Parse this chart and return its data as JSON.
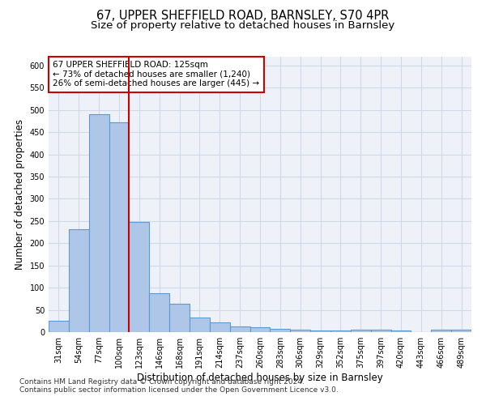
{
  "title1": "67, UPPER SHEFFIELD ROAD, BARNSLEY, S70 4PR",
  "title2": "Size of property relative to detached houses in Barnsley",
  "xlabel": "Distribution of detached houses by size in Barnsley",
  "ylabel": "Number of detached properties",
  "footer1": "Contains HM Land Registry data © Crown copyright and database right 2024.",
  "footer2": "Contains public sector information licensed under the Open Government Licence v3.0.",
  "categories": [
    "31sqm",
    "54sqm",
    "77sqm",
    "100sqm",
    "123sqm",
    "146sqm",
    "168sqm",
    "191sqm",
    "214sqm",
    "237sqm",
    "260sqm",
    "283sqm",
    "306sqm",
    "329sqm",
    "352sqm",
    "375sqm",
    "397sqm",
    "420sqm",
    "443sqm",
    "466sqm",
    "489sqm"
  ],
  "values": [
    25,
    232,
    490,
    472,
    248,
    88,
    63,
    32,
    22,
    13,
    11,
    8,
    5,
    3,
    3,
    5,
    5,
    3,
    0,
    5,
    5
  ],
  "bar_color": "#aec6e8",
  "bar_edge_color": "#5b9bd5",
  "bar_edge_width": 0.8,
  "red_line_index": 4,
  "red_line_color": "#cc0000",
  "annotation_line1": "67 UPPER SHEFFIELD ROAD: 125sqm",
  "annotation_line2": "← 73% of detached houses are smaller (1,240)",
  "annotation_line3": "26% of semi-detached houses are larger (445) →",
  "annotation_box_color": "#ffffff",
  "annotation_box_edge": "#cc0000",
  "ylim": [
    0,
    620
  ],
  "yticks": [
    0,
    50,
    100,
    150,
    200,
    250,
    300,
    350,
    400,
    450,
    500,
    550,
    600
  ],
  "grid_color": "#d0d8e8",
  "bg_color": "#eef2f8",
  "title1_fontsize": 10.5,
  "title2_fontsize": 9.5,
  "xlabel_fontsize": 8.5,
  "ylabel_fontsize": 8.5,
  "tick_fontsize": 7,
  "annotation_fontsize": 7.5,
  "footer_fontsize": 6.5
}
